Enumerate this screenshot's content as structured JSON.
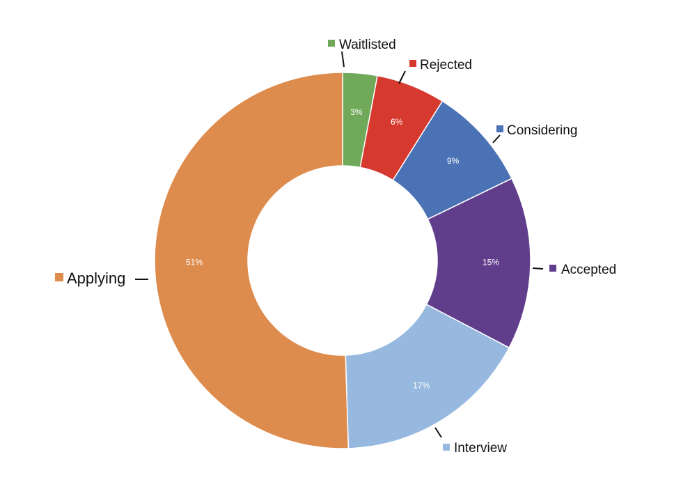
{
  "chart_data": {
    "type": "pie",
    "donut": true,
    "title": "",
    "legend_position": "callouts",
    "slices": [
      {
        "key": "waitlisted",
        "label": "Waitlisted",
        "value": 3,
        "display": "3%",
        "color": "#71a95a"
      },
      {
        "key": "rejected",
        "label": "Rejected",
        "value": 6,
        "display": "6%",
        "color": "#d63a2f"
      },
      {
        "key": "considering",
        "label": "Considering",
        "value": 9,
        "display": "9%",
        "color": "#4a72b5"
      },
      {
        "key": "accepted",
        "label": "Accepted",
        "value": 15,
        "display": "15%",
        "color": "#613e8c"
      },
      {
        "key": "interview",
        "label": "Interview",
        "value": 17,
        "display": "17%",
        "color": "#97b9e0"
      },
      {
        "key": "applying",
        "label": "Applying",
        "value": 51,
        "display": "51%",
        "color": "#de8c4d"
      }
    ]
  }
}
